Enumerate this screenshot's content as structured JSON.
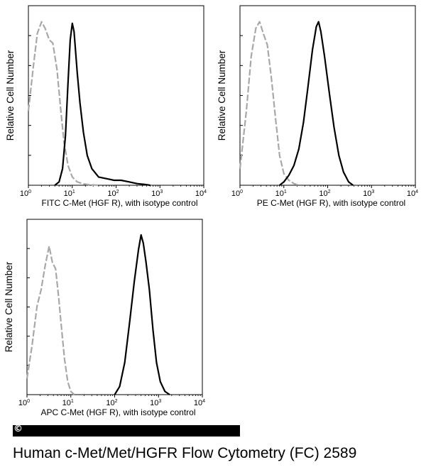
{
  "caption": "Human c-Met/Met/HGFR Flow Cytometry (FC) 2589",
  "copyright_symbol": "©",
  "chart_data": [
    {
      "type": "line",
      "xscale": "log",
      "xlim": [
        1,
        10000
      ],
      "xticks": [
        {
          "mant": "10",
          "exp": "0"
        },
        {
          "mant": "10",
          "exp": "1"
        },
        {
          "mant": "10",
          "exp": "2"
        },
        {
          "mant": "10",
          "exp": "3"
        },
        {
          "mant": "10",
          "exp": "4"
        }
      ],
      "xlabel": "FITC  C-Met (HGF R),  with isotype control",
      "ylabel": "Relative Cell Number",
      "series": [
        {
          "role": "isotype",
          "color": "#a8a8a8",
          "dash": true,
          "x": [
            1,
            1.3,
            1.6,
            2.0,
            2.4,
            3.0,
            3.6,
            4.5,
            5.5,
            6.5,
            8,
            10,
            13,
            18,
            25,
            40
          ],
          "y": [
            0.45,
            0.72,
            0.92,
            0.99,
            0.95,
            0.88,
            0.86,
            0.7,
            0.45,
            0.26,
            0.12,
            0.05,
            0.02,
            0.008,
            0.003,
            0
          ]
        },
        {
          "role": "sample",
          "color": "#000000",
          "dash": false,
          "x": [
            4,
            5,
            6,
            7,
            8,
            9,
            10,
            11,
            13,
            15,
            18,
            22,
            28,
            40,
            60,
            90,
            130,
            200,
            300,
            450,
            600
          ],
          "y": [
            0,
            0.02,
            0.1,
            0.3,
            0.62,
            0.88,
            0.98,
            0.93,
            0.68,
            0.5,
            0.32,
            0.18,
            0.1,
            0.05,
            0.04,
            0.03,
            0.03,
            0.02,
            0.01,
            0.005,
            0
          ]
        }
      ]
    },
    {
      "type": "line",
      "xscale": "log",
      "xlim": [
        1,
        10000
      ],
      "xticks": [
        {
          "mant": "10",
          "exp": "0"
        },
        {
          "mant": "10",
          "exp": "1"
        },
        {
          "mant": "10",
          "exp": "2"
        },
        {
          "mant": "10",
          "exp": "3"
        },
        {
          "mant": "10",
          "exp": "4"
        }
      ],
      "xlabel": "PE  C-Met (HGF R),  with isotype control",
      "ylabel": "Relative Cell Number",
      "series": [
        {
          "role": "isotype",
          "color": "#a8a8a8",
          "dash": true,
          "x": [
            1,
            1.4,
            1.8,
            2.3,
            2.8,
            3.4,
            4.2,
            5.2,
            6.5,
            8,
            10,
            13,
            17,
            22
          ],
          "y": [
            0.1,
            0.45,
            0.78,
            0.95,
            0.99,
            0.92,
            0.85,
            0.65,
            0.4,
            0.18,
            0.07,
            0.03,
            0.01,
            0
          ]
        },
        {
          "role": "sample",
          "color": "#000000",
          "dash": false,
          "x": [
            8,
            10,
            13,
            17,
            22,
            28,
            35,
            45,
            55,
            62,
            70,
            85,
            110,
            140,
            180,
            230,
            300,
            380
          ],
          "y": [
            0,
            0.02,
            0.06,
            0.12,
            0.22,
            0.38,
            0.58,
            0.82,
            0.96,
            0.99,
            0.93,
            0.78,
            0.55,
            0.35,
            0.18,
            0.08,
            0.02,
            0
          ]
        }
      ]
    },
    {
      "type": "line",
      "xscale": "log",
      "xlim": [
        1,
        10000
      ],
      "xticks": [
        {
          "mant": "10",
          "exp": "0"
        },
        {
          "mant": "10",
          "exp": "1"
        },
        {
          "mant": "10",
          "exp": "2"
        },
        {
          "mant": "10",
          "exp": "3"
        },
        {
          "mant": "10",
          "exp": "4"
        }
      ],
      "xlabel": "APC C-Met (HGF R), with isotype control",
      "ylabel": "Relative Cell Number",
      "series": [
        {
          "role": "isotype",
          "color": "#a8a8a8",
          "dash": true,
          "x": [
            1,
            1.3,
            1.7,
            2.1,
            2.6,
            3.2,
            3.8,
            4.5,
            5.3,
            6.2,
            7.2,
            8.5,
            10,
            12
          ],
          "y": [
            0.1,
            0.3,
            0.55,
            0.65,
            0.8,
            0.92,
            0.82,
            0.78,
            0.6,
            0.4,
            0.22,
            0.08,
            0.02,
            0
          ]
        },
        {
          "role": "sample",
          "color": "#000000",
          "dash": false,
          "x": [
            100,
            130,
            170,
            220,
            280,
            350,
            400,
            450,
            520,
            620,
            750,
            900,
            1100,
            1400,
            1800
          ],
          "y": [
            0,
            0.05,
            0.2,
            0.45,
            0.7,
            0.9,
            0.99,
            0.94,
            0.82,
            0.65,
            0.4,
            0.2,
            0.08,
            0.02,
            0
          ]
        }
      ]
    }
  ]
}
